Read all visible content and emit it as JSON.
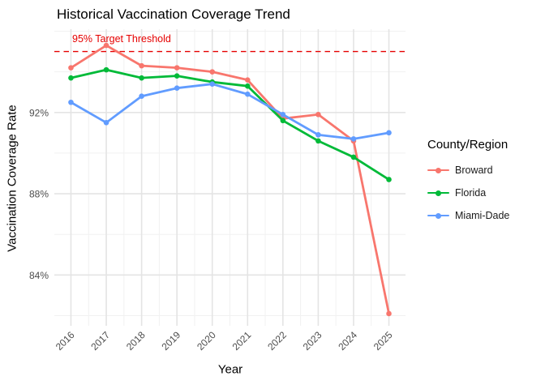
{
  "chart_data": {
    "type": "line",
    "title": "Historical Vaccination Coverage Trend",
    "xlabel": "Year",
    "ylabel": "Vaccination Coverage Rate",
    "x": [
      2016,
      2017,
      2018,
      2019,
      2020,
      2021,
      2022,
      2023,
      2024,
      2025
    ],
    "series": [
      {
        "name": "Broward",
        "color": "#F8766D",
        "values": [
          94.2,
          95.3,
          94.3,
          94.2,
          94.0,
          93.6,
          91.7,
          91.9,
          90.6,
          82.1
        ]
      },
      {
        "name": "Florida",
        "color": "#00BA38",
        "values": [
          93.7,
          94.1,
          93.7,
          93.8,
          93.5,
          93.3,
          91.6,
          90.6,
          89.8,
          88.7
        ]
      },
      {
        "name": "Miami-Dade",
        "color": "#619CFF",
        "values": [
          92.5,
          91.5,
          92.8,
          93.2,
          93.4,
          92.9,
          91.9,
          90.9,
          90.7,
          91.0
        ]
      }
    ],
    "yticks": [
      {
        "value": 84,
        "label": "84%"
      },
      {
        "value": 88,
        "label": "88%"
      },
      {
        "value": 92,
        "label": "92%"
      }
    ],
    "yminor": [
      82,
      86,
      90,
      94,
      96
    ],
    "xminor_step": 0.5,
    "ylim": [
      81.5,
      96.1
    ],
    "xlim": [
      2015.53,
      2025.47
    ],
    "grid": true,
    "legend": {
      "title": "County/Region",
      "position": "right"
    },
    "threshold": {
      "value": 95,
      "label": "95% Target Threshold",
      "color": "#E60000",
      "line_style": "dashed"
    },
    "colors": {
      "axis_text": "#4D4D4D",
      "grid_major": "#E4E4E4",
      "grid_minor": "#F1F1F1"
    }
  }
}
